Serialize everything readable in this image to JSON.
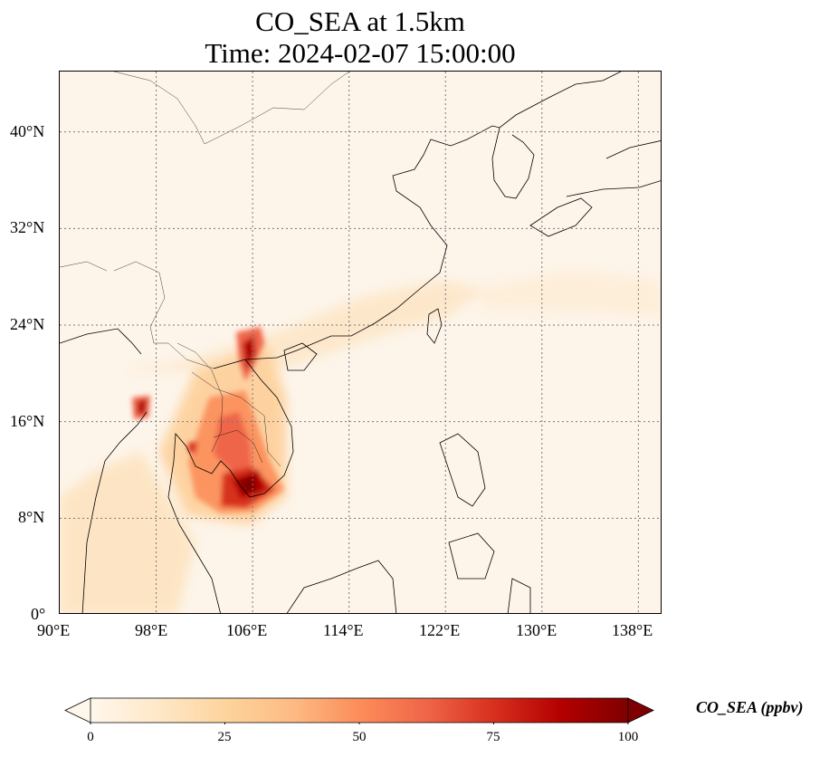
{
  "title": {
    "line1": "CO_SEA at 1.5km",
    "line2": "Time: 2024-02-07 15:00:00"
  },
  "map": {
    "variable": "CO_SEA",
    "extent": {
      "lon": [
        90,
        140
      ],
      "lat": [
        0,
        45
      ]
    },
    "gridlines": "dotted",
    "lon_ticks": [
      90,
      98,
      106,
      114,
      122,
      130,
      138
    ],
    "lat_ticks": [
      0,
      8,
      16,
      24,
      32,
      40
    ],
    "lon_tick_labels": [
      "90°E",
      "98°E",
      "106°E",
      "114°E",
      "122°E",
      "130°E",
      "138°E"
    ],
    "lat_tick_labels": [
      "0°",
      "8°N",
      "16°N",
      "24°N",
      "32°N",
      "40°N"
    ],
    "colormap": "OrRd"
  },
  "colorbar": {
    "label": "CO_SEA (ppbv)",
    "range": [
      0,
      100
    ],
    "extend": "both",
    "ticks": [
      0,
      25,
      50,
      75,
      100
    ],
    "tick_labels": [
      "0",
      "25",
      "50",
      "75",
      "100"
    ],
    "stops": [
      "#fff7ec",
      "#fee8c8",
      "#fdd49e",
      "#fdbb84",
      "#fc8d59",
      "#ef6548",
      "#d7301f",
      "#b30000",
      "#7f0000"
    ]
  }
}
